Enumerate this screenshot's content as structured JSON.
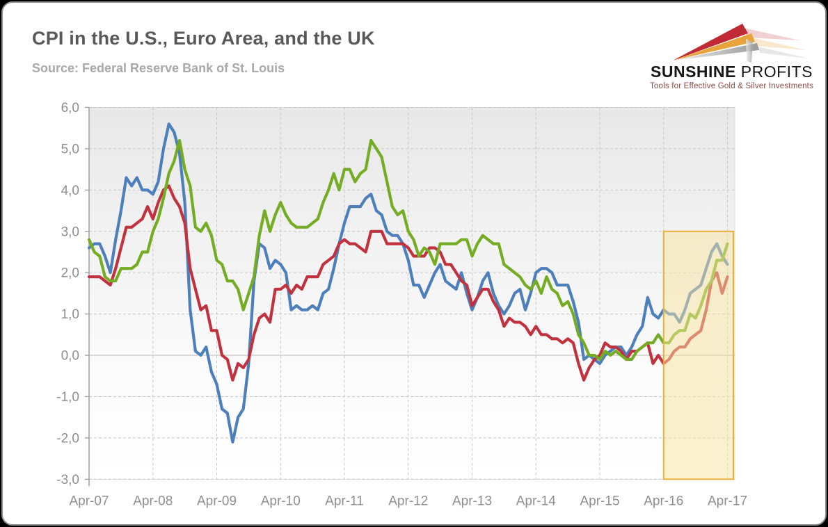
{
  "header": {
    "title": "CPI in the U.S., Euro Area, and the UK",
    "source": "Source: Federal Reserve Bank of St. Louis"
  },
  "logo": {
    "brand_bold": "SUNSHINE",
    "brand_light": "PROFITS",
    "tagline": "Tools for Effective Gold & Silver Investments"
  },
  "colors": {
    "background": "#000000",
    "card": "#FFFFFF",
    "title_text": "#585858",
    "source_text": "#A9A9A9",
    "axis_text": "#8F8F8F",
    "grid": "#C7C7C7",
    "zero_line": "#B9B9B9",
    "logo_red": "#C02A34",
    "logo_gold": "#E8A33B",
    "logo_silver": "#C9C9C9"
  },
  "chart_data": {
    "type": "line",
    "title": "CPI in the U.S., Euro Area, and the UK",
    "xlabel": "",
    "ylabel": "",
    "ylim": [
      -3,
      6
    ],
    "grid": "dashed",
    "legend_position": "none",
    "frequency": "monthly",
    "start_month": "Apr-2007",
    "end_month": "Apr-2017",
    "x_tick_labels": [
      "Apr-07",
      "Apr-08",
      "Apr-09",
      "Apr-10",
      "Apr-11",
      "Apr-12",
      "Apr-13",
      "Apr-14",
      "Apr-15",
      "Apr-16",
      "Apr-17"
    ],
    "y_tick_labels": [
      "6,0",
      "5,0",
      "4,0",
      "3,0",
      "2,0",
      "1,0",
      "0,0",
      "-1,0",
      "-2,0",
      "-3,0"
    ],
    "highlight": {
      "from": "Apr-16",
      "to": "Apr-17",
      "y_top": 3.0,
      "y_bottom": -3.0,
      "fill": "#F7E39D",
      "border": "#E9AF37"
    },
    "series": [
      {
        "name": "U.S.",
        "color": "#4C7FBC",
        "values": [
          2.6,
          2.7,
          2.7,
          2.4,
          2.0,
          2.8,
          3.5,
          4.3,
          4.1,
          4.3,
          4.0,
          4.0,
          3.9,
          4.2,
          5.0,
          5.6,
          5.4,
          4.9,
          3.7,
          1.1,
          0.1,
          0.0,
          0.2,
          -0.4,
          -0.7,
          -1.3,
          -1.4,
          -2.1,
          -1.5,
          -1.3,
          -0.2,
          1.8,
          2.7,
          2.6,
          2.1,
          2.3,
          2.2,
          2.0,
          1.1,
          1.2,
          1.1,
          1.1,
          1.2,
          1.1,
          1.5,
          1.6,
          2.1,
          2.7,
          3.2,
          3.6,
          3.6,
          3.6,
          3.8,
          3.9,
          3.5,
          3.4,
          3.0,
          2.9,
          2.9,
          2.7,
          2.3,
          1.7,
          1.7,
          1.4,
          1.7,
          2.0,
          2.2,
          1.8,
          1.7,
          1.6,
          2.0,
          1.5,
          1.1,
          1.4,
          1.8,
          2.0,
          1.5,
          1.2,
          1.0,
          1.2,
          1.5,
          1.6,
          1.1,
          1.5,
          2.0,
          2.1,
          2.1,
          2.0,
          1.7,
          1.7,
          1.7,
          1.3,
          0.8,
          -0.1,
          0.0,
          -0.1,
          -0.2,
          0.0,
          0.1,
          0.2,
          0.2,
          0.0,
          0.2,
          0.5,
          0.7,
          1.4,
          1.0,
          0.9,
          1.1,
          1.0,
          1.0,
          0.8,
          1.1,
          1.5,
          1.6,
          1.7,
          2.1,
          2.5,
          2.7,
          2.4,
          2.2
        ]
      },
      {
        "name": "Euro Area",
        "color": "#C2323E",
        "values": [
          1.9,
          1.9,
          1.9,
          1.8,
          1.7,
          2.1,
          2.6,
          3.1,
          3.1,
          3.2,
          3.3,
          3.6,
          3.3,
          3.7,
          4.0,
          4.1,
          3.8,
          3.6,
          3.2,
          2.1,
          1.6,
          1.1,
          1.2,
          0.6,
          0.6,
          0.0,
          -0.1,
          -0.6,
          -0.2,
          -0.3,
          -0.1,
          0.5,
          0.9,
          1.0,
          0.8,
          1.6,
          1.6,
          1.7,
          1.5,
          1.7,
          1.6,
          1.9,
          1.9,
          1.9,
          2.2,
          2.3,
          2.4,
          2.7,
          2.8,
          2.7,
          2.7,
          2.6,
          2.5,
          3.0,
          3.0,
          3.0,
          2.7,
          2.7,
          2.7,
          2.7,
          2.6,
          2.4,
          2.4,
          2.4,
          2.6,
          2.6,
          2.5,
          2.2,
          2.2,
          2.0,
          1.8,
          1.7,
          1.2,
          1.4,
          1.6,
          1.6,
          1.3,
          1.1,
          0.7,
          0.9,
          0.8,
          0.8,
          0.7,
          0.5,
          0.7,
          0.5,
          0.5,
          0.4,
          0.4,
          0.3,
          0.4,
          0.3,
          -0.2,
          -0.6,
          -0.3,
          -0.1,
          0.0,
          0.3,
          0.2,
          0.2,
          0.1,
          -0.1,
          0.1,
          0.1,
          0.2,
          0.3,
          -0.2,
          0.0,
          -0.2,
          -0.1,
          0.1,
          0.2,
          0.2,
          0.4,
          0.5,
          0.6,
          1.1,
          1.8,
          2.0,
          1.5,
          1.9
        ]
      },
      {
        "name": "UK",
        "color": "#74AC23",
        "values": [
          2.8,
          2.5,
          2.4,
          1.9,
          1.8,
          1.8,
          2.1,
          2.1,
          2.1,
          2.2,
          2.5,
          2.5,
          3.0,
          3.3,
          3.8,
          4.4,
          4.7,
          5.2,
          4.5,
          4.1,
          3.1,
          3.0,
          3.2,
          2.9,
          2.3,
          2.2,
          1.8,
          1.8,
          1.6,
          1.1,
          1.5,
          1.9,
          2.9,
          3.5,
          3.0,
          3.4,
          3.7,
          3.4,
          3.2,
          3.1,
          3.1,
          3.1,
          3.2,
          3.3,
          3.7,
          4.0,
          4.4,
          4.0,
          4.5,
          4.5,
          4.2,
          4.4,
          4.5,
          5.2,
          5.0,
          4.8,
          4.2,
          3.6,
          3.4,
          3.5,
          3.0,
          2.8,
          2.4,
          2.6,
          2.5,
          2.2,
          2.7,
          2.7,
          2.7,
          2.7,
          2.8,
          2.8,
          2.4,
          2.7,
          2.9,
          2.8,
          2.7,
          2.7,
          2.2,
          2.1,
          2.0,
          1.9,
          1.7,
          1.6,
          1.8,
          1.5,
          1.9,
          1.6,
          1.5,
          1.2,
          1.3,
          1.0,
          0.5,
          0.3,
          0.0,
          0.0,
          -0.1,
          0.1,
          0.0,
          0.1,
          0.0,
          -0.1,
          -0.1,
          0.1,
          0.2,
          0.3,
          0.3,
          0.5,
          0.3,
          0.3,
          0.5,
          0.6,
          0.6,
          1.0,
          0.9,
          1.2,
          1.6,
          1.8,
          2.3,
          2.3,
          2.7
        ]
      }
    ]
  }
}
